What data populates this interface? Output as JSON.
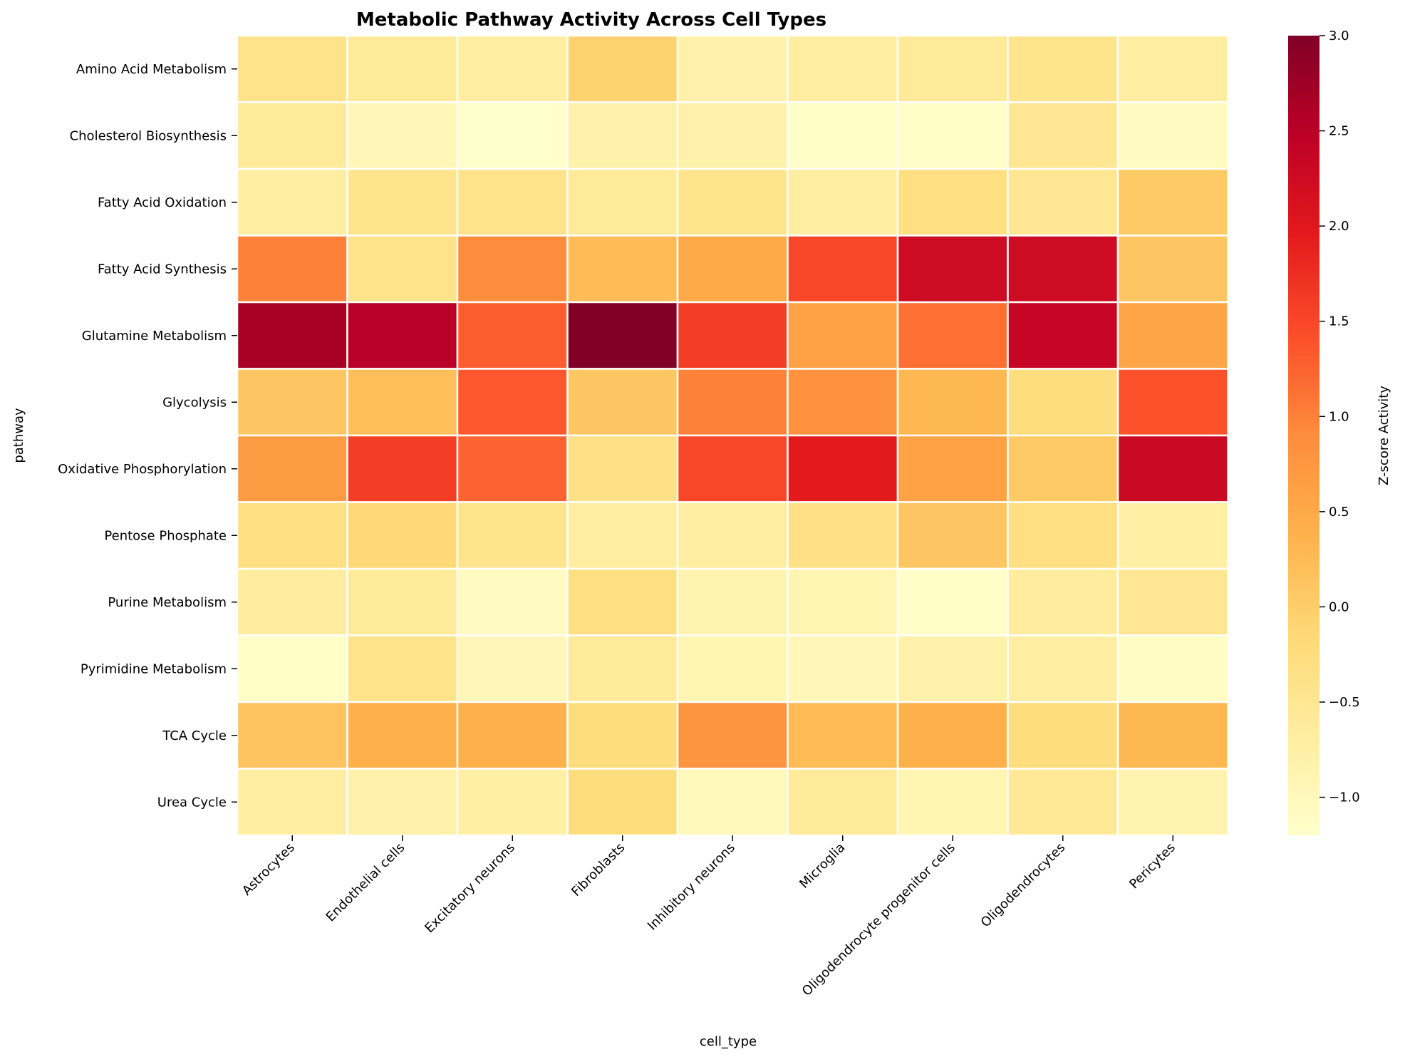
{
  "chart_data": {
    "type": "heatmap",
    "title": "Metabolic Pathway Activity Across Cell Types",
    "xlabel": "cell_type",
    "ylabel": "pathway",
    "colorbar_label": "Z-score Activity",
    "colormap": "YlOrRd",
    "vmin": -1.2,
    "vmax": 3.0,
    "colorbar_ticks": [
      "3.0",
      "2.5",
      "2.0",
      "1.5",
      "1.0",
      "0.5",
      "0.0",
      "−0.5",
      "−1.0"
    ],
    "columns": [
      "Astrocytes",
      "Endothelial cells",
      "Excitatory neurons",
      "Fibroblasts",
      "Inhibitory neurons",
      "Microglia",
      "Oligodendrocyte progenitor cells",
      "Oligodendrocytes",
      "Pericytes"
    ],
    "rows": [
      "Amino Acid Metabolism",
      "Cholesterol Biosynthesis",
      "Fatty Acid Oxidation",
      "Fatty Acid Synthesis",
      "Glutamine Metabolism",
      "Glycolysis",
      "Oxidative Phosphorylation",
      "Pentose Phosphate",
      "Purine Metabolism",
      "Pyrimidine Metabolism",
      "TCA Cycle",
      "Urea Cycle"
    ],
    "values": [
      [
        -0.4,
        -0.6,
        -0.7,
        -0.05,
        -0.8,
        -0.7,
        -0.6,
        -0.45,
        -0.7
      ],
      [
        -0.6,
        -0.95,
        -1.2,
        -0.8,
        -0.8,
        -1.15,
        -1.15,
        -0.5,
        -1.05
      ],
      [
        -0.7,
        -0.45,
        -0.4,
        -0.6,
        -0.45,
        -0.7,
        -0.3,
        -0.5,
        0.05
      ],
      [
        1.0,
        -0.4,
        0.9,
        0.25,
        0.5,
        1.5,
        2.25,
        2.25,
        0.1
      ],
      [
        2.65,
        2.5,
        1.3,
        3.0,
        1.6,
        0.6,
        1.15,
        2.35,
        0.55
      ],
      [
        0.1,
        0.2,
        1.35,
        0.1,
        1.0,
        0.85,
        0.3,
        -0.25,
        1.4
      ],
      [
        0.7,
        1.6,
        1.25,
        -0.35,
        1.5,
        1.95,
        0.6,
        0.05,
        2.3
      ],
      [
        -0.3,
        -0.15,
        -0.45,
        -0.7,
        -0.7,
        -0.35,
        0.1,
        -0.3,
        -0.75
      ],
      [
        -0.65,
        -0.6,
        -1.05,
        -0.3,
        -0.85,
        -0.9,
        -1.15,
        -0.65,
        -0.5
      ],
      [
        -1.15,
        -0.4,
        -0.95,
        -0.6,
        -0.9,
        -0.95,
        -0.8,
        -0.7,
        -1.1
      ],
      [
        0.15,
        0.4,
        0.4,
        -0.25,
        0.8,
        0.25,
        0.4,
        -0.25,
        0.3
      ],
      [
        -0.7,
        -0.8,
        -0.75,
        -0.25,
        -1.0,
        -0.6,
        -0.9,
        -0.55,
        -0.85
      ]
    ]
  }
}
